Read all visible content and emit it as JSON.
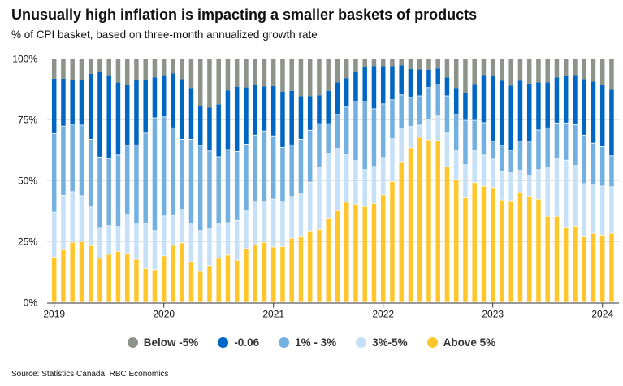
{
  "header": {
    "title": "Unusually high inflation is impacting a smaller baskets of products",
    "subtitle": "% of CPI basket, based on three-month annualized growth rate"
  },
  "source": "Source: Statistics Canada, RBC Economics",
  "chart_data": {
    "type": "bar",
    "stacked": true,
    "title": "Unusually high inflation is impacting a smaller baskets of products",
    "subtitle": "% of CPI basket, based on three-month annualized growth rate",
    "xlabel": "",
    "ylabel": "",
    "ylim": [
      0,
      100
    ],
    "yticks": [
      "0%",
      "25%",
      "50%",
      "75%",
      "100%"
    ],
    "ytick_values": [
      0,
      25,
      50,
      75,
      100
    ],
    "xticks": [
      "2019",
      "2020",
      "2021",
      "2022",
      "2023",
      "2024"
    ],
    "xtick_index": [
      0,
      12,
      24,
      36,
      48,
      60
    ],
    "grid": "horizontal",
    "legend_position": "bottom",
    "period": "monthly, Jan 2019 - Feb 2024",
    "series": [
      {
        "name": "Above 5%",
        "color": "#FFC62C",
        "values": [
          18.6,
          21.6,
          24.7,
          24.9,
          23.3,
          18.1,
          19.7,
          20.9,
          20.1,
          17.7,
          13.9,
          13.4,
          19.1,
          23.4,
          24.4,
          16.7,
          12.7,
          15.1,
          18.1,
          19.4,
          17.3,
          22.1,
          23.6,
          24.7,
          22.7,
          22.9,
          26.3,
          26.9,
          29.3,
          29.9,
          34.6,
          37.6,
          41.1,
          40.3,
          39.3,
          40.6,
          44.1,
          49.6,
          57.7,
          63.4,
          67.7,
          66.7,
          66.4,
          55.6,
          50.4,
          42.9,
          49.1,
          47.7,
          47.1,
          42.0,
          41.7,
          45.3,
          43.6,
          42.3,
          35.3,
          35.3,
          30.9,
          31.3,
          26.9,
          28.3,
          27.6,
          28.3
        ]
      },
      {
        "name": "3%-5%",
        "color": "#C5E0F7",
        "values": [
          18.4,
          22.3,
          20.7,
          18.8,
          15.8,
          12.6,
          11.7,
          10.2,
          16.0,
          14.4,
          18.5,
          16.0,
          16.3,
          12.3,
          13.7,
          15.4,
          16.7,
          15.0,
          14.0,
          13.3,
          16.3,
          15.3,
          17.8,
          16.7,
          19.6,
          18.5,
          17.1,
          17.5,
          20.0,
          25.5,
          26.5,
          25.5,
          19.6,
          17.8,
          15.1,
          15.1,
          15.3,
          17.5,
          13.4,
          8.7,
          5.0,
          8.4,
          10.0,
          13.8,
          11.7,
          13.5,
          13.0,
          12.7,
          11.6,
          11.5,
          11.4,
          8.8,
          8.5,
          12.1,
          19.8,
          23.8,
          27.4,
          24.8,
          21.8,
          19.8,
          20.1,
          19.1
        ]
      },
      {
        "name": "1% - 3%",
        "color": "#73B0E2",
        "values": [
          32.2,
          28.4,
          27.7,
          29.0,
          27.8,
          28.9,
          27.6,
          29.3,
          28.3,
          32.5,
          37.0,
          46.3,
          40.7,
          35.9,
          28.8,
          34.8,
          35.0,
          32.0,
          27.6,
          30.0,
          28.3,
          27.5,
          27.2,
          28.9,
          26.0,
          22.2,
          21.2,
          22.5,
          21.3,
          17.9,
          12.2,
          14.0,
          19.4,
          24.3,
          28.0,
          23.7,
          22.0,
          16.0,
          14.0,
          12.0,
          12.0,
          13.0,
          13.0,
          15.3,
          15.0,
          18.3,
          12.6,
          13.3,
          7.4,
          10.9,
          9.3,
          12.0,
          14.0,
          16.3,
          16.5,
          14.5,
          15.3,
          16.8,
          19.9,
          17.2,
          16.2,
          12.7
        ]
      },
      {
        "name": "-0.06",
        "color": "#0066C4",
        "values": [
          22.7,
          19.6,
          18.3,
          18.7,
          27.0,
          35.0,
          34.3,
          29.9,
          25.0,
          26.8,
          22.0,
          16.7,
          17.2,
          22.5,
          24.8,
          21.2,
          16.2,
          18.0,
          21.7,
          24.4,
          26.7,
          23.4,
          20.7,
          18.4,
          20.6,
          23.0,
          22.3,
          17.8,
          14.1,
          11.8,
          13.6,
          13.3,
          12.0,
          12.3,
          14.3,
          17.7,
          15.7,
          14.0,
          12.3,
          11.8,
          11.0,
          7.5,
          6.7,
          7.7,
          11.0,
          11.4,
          15.0,
          19.7,
          27.0,
          26.7,
          26.7,
          25.0,
          23.8,
          19.7,
          18.8,
          18.8,
          19.5,
          20.5,
          23.1,
          25.4,
          25.5,
          27.3
        ]
      },
      {
        "name": "Below -5%",
        "color": "#8C9389",
        "values": [
          8.1,
          8.1,
          8.6,
          8.6,
          6.1,
          5.4,
          6.7,
          9.7,
          10.6,
          8.6,
          8.6,
          7.6,
          6.7,
          5.9,
          8.3,
          11.9,
          19.4,
          19.9,
          18.6,
          12.9,
          11.4,
          11.7,
          10.7,
          11.3,
          11.1,
          13.4,
          13.1,
          15.3,
          15.3,
          14.9,
          13.1,
          9.6,
          7.9,
          5.3,
          3.3,
          2.9,
          2.9,
          2.9,
          2.6,
          4.1,
          4.3,
          4.4,
          3.9,
          7.6,
          11.9,
          13.9,
          10.3,
          6.6,
          6.9,
          8.9,
          10.9,
          8.9,
          10.1,
          9.6,
          9.6,
          7.6,
          6.9,
          6.6,
          8.3,
          9.3,
          10.6,
          12.6
        ]
      }
    ]
  }
}
